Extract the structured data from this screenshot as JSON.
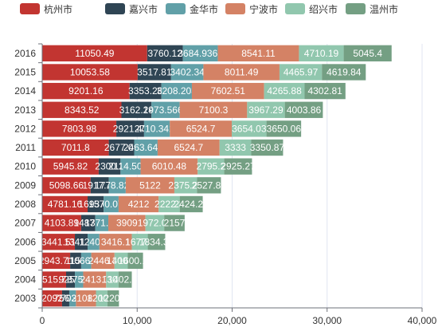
{
  "chart_data": {
    "type": "bar",
    "orientation": "horizontal",
    "stacked": true,
    "grid": true,
    "legend_position": "top",
    "xlim": [
      0,
      40000
    ],
    "x_ticks": [
      "0",
      "10,000",
      "20,000",
      "30,000",
      "40,000"
    ],
    "categories": [
      "2016",
      "2015",
      "2014",
      "2013",
      "2012",
      "2011",
      "2010",
      "2009",
      "2008",
      "2007",
      "2006",
      "2005",
      "2004",
      "2003"
    ],
    "series": [
      {
        "name": "杭州市",
        "color": "#c23531",
        "values": [
          11050.49,
          10053.58,
          9201.16,
          8343.52,
          7803.98,
          7011.8,
          5945.82,
          5098.66,
          4781.16,
          4103.89,
          3441.51,
          2943.71,
          2515.73,
          2092.0
        ]
      },
      {
        "name": "嘉兴市",
        "color": "#2f4554",
        "values": [
          3760.12,
          3517.81,
          3353.26,
          3162.14,
          2921.43,
          2677.09,
          2300.2,
          1917.75,
          1693.06,
          1487.2,
          1341.13,
          1158.0,
          925.2,
          756.4
        ]
      },
      {
        "name": "金华市",
        "color": "#61a0a8",
        "values": [
          3684.9362,
          3402.34,
          3208.203,
          2973.5669,
          2710.3428,
          2463.6409,
          2114.5027,
          1778.8219,
          1570.0788,
          1371.35,
          1240.8,
          1066.25,
          875.5,
          703.8
        ]
      },
      {
        "name": "宁波市",
        "color": "#d48265",
        "values": [
          8541.11,
          8011.49,
          7602.51,
          7100.3,
          6524.7,
          6524.7,
          6010.48,
          5122.0,
          4212.0,
          3909.0,
          3416.1,
          2446.3,
          2413.7,
          2108.1
        ]
      },
      {
        "name": "绍兴市",
        "color": "#91c7ae",
        "values": [
          4710.19,
          4465.97,
          4265.88,
          3967.29,
          3654.03,
          3333.0,
          2795.2,
          2375.25,
          2222.3,
          1972.05,
          1677.5,
          1400.5,
          1302.0,
          1200.3
        ]
      },
      {
        "name": "温州市",
        "color": "#749f83",
        "values": [
          5045.4,
          4619.84,
          4302.81,
          4003.86,
          3650.06,
          3350.87,
          2925.27,
          2527.88,
          2424.29,
          2157.0,
          1834.38,
          1600.17,
          1402.57,
          1220.3
        ]
      }
    ],
    "data_labels": [
      [
        "11050.49",
        "3760.12",
        "3684.9362",
        "8541.11",
        "4710.19",
        "5045.4"
      ],
      [
        "10053.58",
        "3517.81",
        "3402.34",
        "8011.49",
        "4465.97",
        "4619.84"
      ],
      [
        "9201.16",
        "3353.26",
        "3208.203",
        "7602.51",
        "4265.88",
        "4302.81"
      ],
      [
        "8343.52",
        "3162.14",
        "2973.5669",
        "7100.3",
        "3967.29",
        "4003.86"
      ],
      [
        "7803.98",
        "2921.43",
        "2710.3428",
        "6524.7",
        "3654.03",
        "3650.06"
      ],
      [
        "7011.8",
        "2677.09",
        "2463.6409",
        "6524.7",
        "3333",
        "3350.87"
      ],
      [
        "5945.82",
        "2300.2",
        "2114.5027",
        "6010.48",
        "2795.2",
        "2925.27"
      ],
      [
        "5098.66",
        "1917.75",
        "1778.8219",
        "5122",
        "2375.25",
        "2527.88"
      ],
      [
        "4781.16",
        "1693.06",
        "1570.0788",
        "4212",
        "2222.3",
        "2424.29"
      ],
      [
        "4103.89",
        "1487.2",
        "1371.35",
        "3909",
        "1972.05",
        "2157"
      ],
      [
        "3441.51",
        "1341.13",
        "1240.8",
        "3416.1",
        "1677.5",
        "1834.38"
      ],
      [
        "2943.71",
        "1158",
        "1066.25",
        "2446.3",
        "1400.5",
        "1600.17"
      ],
      [
        "2515.73",
        "925.2",
        "875.5",
        "2413.7",
        "1302",
        "1402.57"
      ],
      [
        "2092",
        "756.4",
        "703.8",
        "2108.1",
        "1200.3",
        "1220.3"
      ]
    ]
  }
}
